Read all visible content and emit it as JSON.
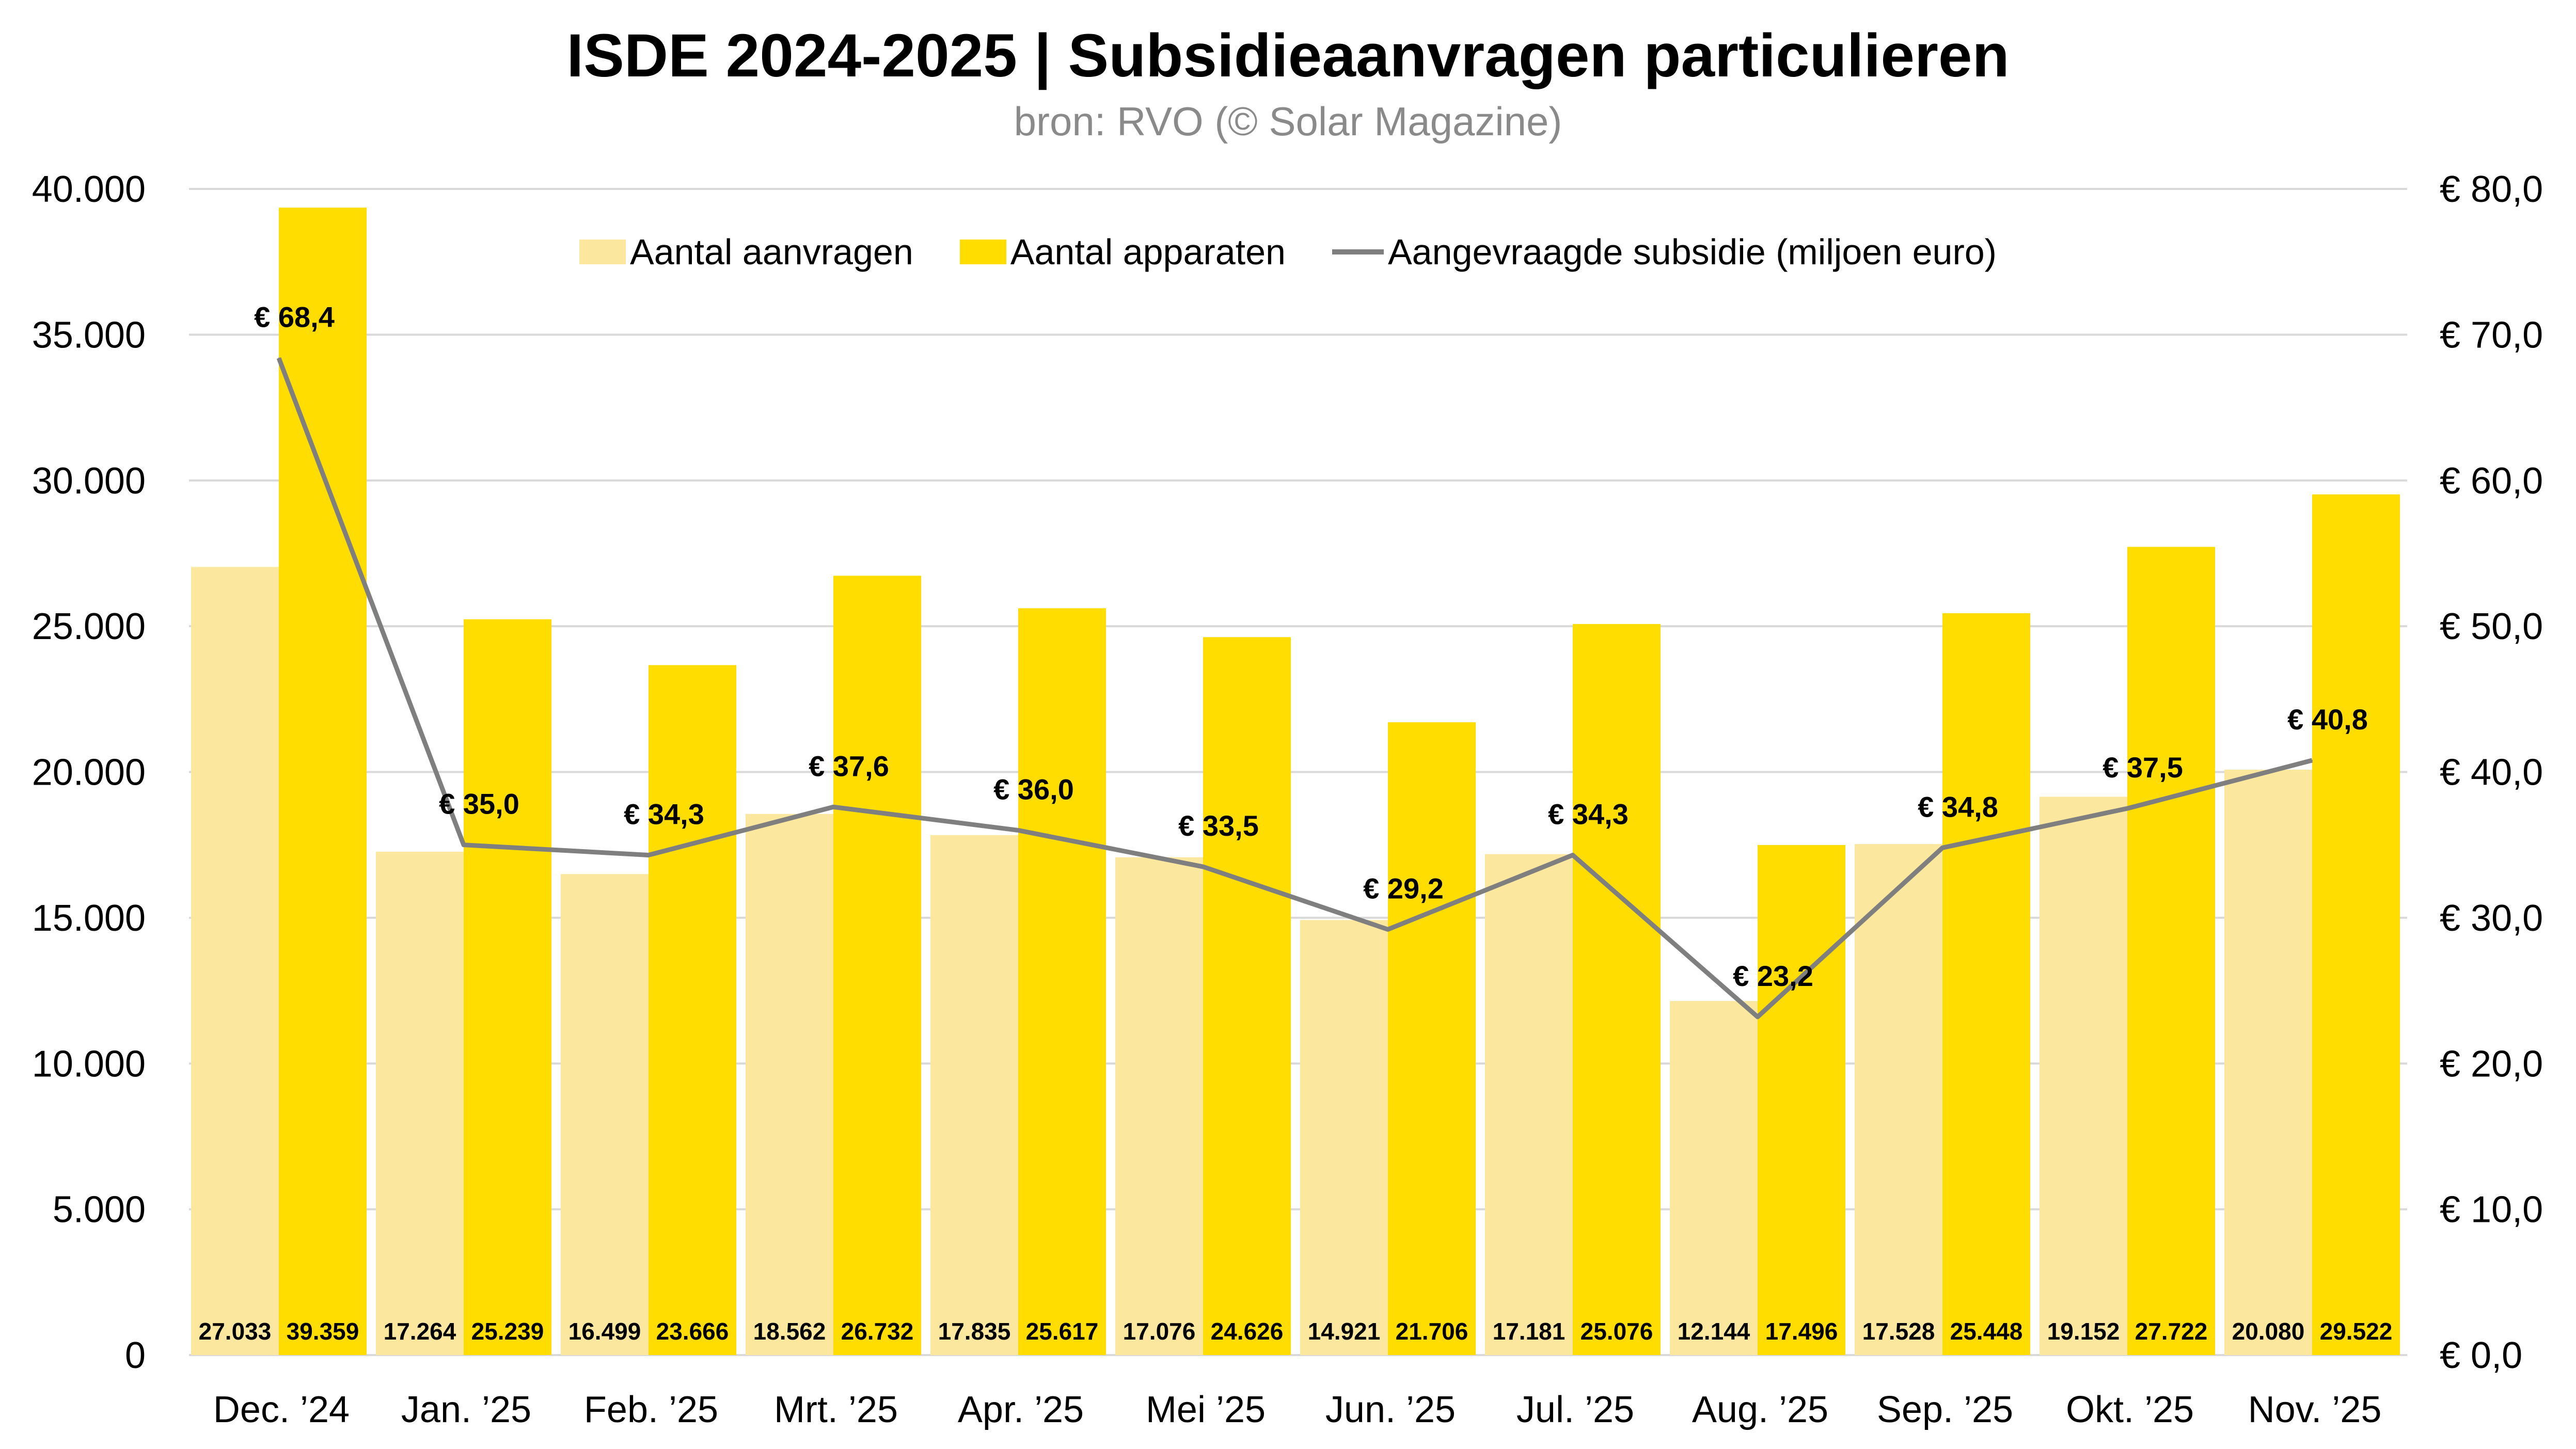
{
  "header": {
    "title": "ISDE 2024-2025 | Subsidieaanvragen particulieren",
    "subtitle": "bron: RVO (© Solar Magazine)"
  },
  "colors": {
    "aanvragen": "#FCE79E",
    "apparaten": "#FFDD00",
    "line": "#7F7F7F",
    "grid": "#D9D9D9"
  },
  "chart_data": {
    "type": "bar",
    "title": "ISDE 2024-2025 | Subsidieaanvragen particulieren",
    "subtitle": "bron: RVO (© Solar Magazine)",
    "categories": [
      "Dec. ’24",
      "Jan. ’25",
      "Feb. ’25",
      "Mrt. ’25",
      "Apr. ’25",
      "Mei ’25",
      "Jun. ’25",
      "Jul. ’25",
      "Aug. ’25",
      "Sep. ’25",
      "Okt. ’25",
      "Nov. ’25"
    ],
    "series": [
      {
        "name": "Aantal aanvragen",
        "type": "bar",
        "axis": "left",
        "values": [
          27033,
          17264,
          16499,
          18562,
          17835,
          17076,
          14921,
          17181,
          12144,
          17528,
          19152,
          20080
        ],
        "labels": [
          "27.033",
          "17.264",
          "16.499",
          "18.562",
          "17.835",
          "17.076",
          "14.921",
          "17.181",
          "12.144",
          "17.528",
          "19.152",
          "20.080"
        ]
      },
      {
        "name": "Aantal apparaten",
        "type": "bar",
        "axis": "left",
        "values": [
          39359,
          25239,
          23666,
          26732,
          25617,
          24626,
          21706,
          25076,
          17496,
          25448,
          27722,
          29522
        ],
        "labels": [
          "39.359",
          "25.239",
          "23.666",
          "26.732",
          "25.617",
          "24.626",
          "21.706",
          "25.076",
          "17.496",
          "25.448",
          "27.722",
          "29.522"
        ]
      },
      {
        "name": "Aangevraagde subsidie (miljoen euro)",
        "type": "line",
        "axis": "right",
        "values": [
          68.4,
          35.0,
          34.3,
          37.6,
          36.0,
          33.5,
          29.2,
          34.3,
          23.2,
          34.8,
          37.5,
          40.8
        ],
        "labels": [
          "€ 68,4",
          "€ 35,0",
          "€ 34,3",
          "€ 37,6",
          "€ 36,0",
          "€ 33,5",
          "€ 29,2",
          "€ 34,3",
          "€ 23,2",
          "€ 34,8",
          "€ 37,5",
          "€ 40,8"
        ]
      }
    ],
    "y_left": {
      "range": [
        0,
        40000
      ],
      "ticks": [
        "0",
        "5.000",
        "10.000",
        "15.000",
        "20.000",
        "25.000",
        "30.000",
        "35.000",
        "40.000"
      ]
    },
    "y_right": {
      "range": [
        0,
        80
      ],
      "ticks": [
        "€ 0,0",
        "€ 10,0",
        "€ 20,0",
        "€ 30,0",
        "€ 40,0",
        "€ 50,0",
        "€ 60,0",
        "€ 70,0",
        "€ 80,0"
      ]
    },
    "xlabel": "",
    "ylabel": "",
    "grid": true,
    "legend_position": "top-center"
  }
}
